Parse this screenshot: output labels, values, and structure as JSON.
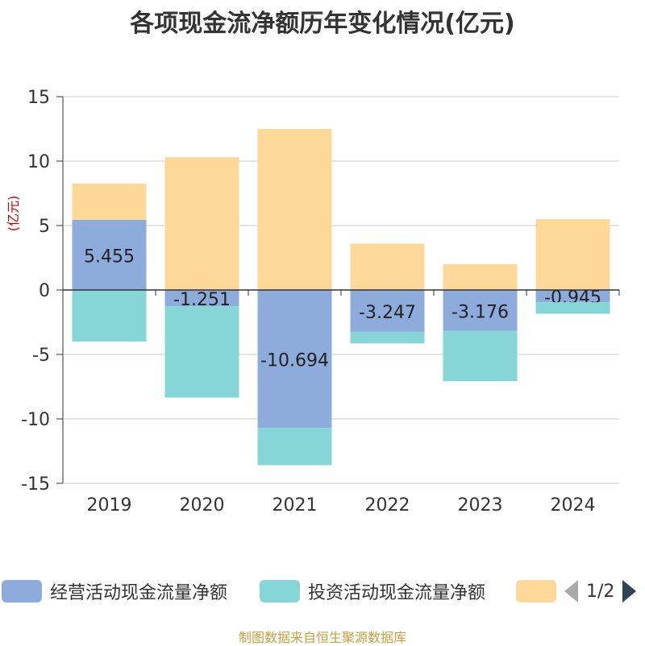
{
  "chart_data": {
    "type": "bar",
    "stacked": true,
    "title": "各项现金流净额历年变化情况(亿元)",
    "ylabel": "(亿元)",
    "xlabel": "",
    "ylim": [
      -15,
      15
    ],
    "yticks": [
      15,
      10,
      5,
      0,
      -5,
      -10,
      -15
    ],
    "categories": [
      "2019",
      "2020",
      "2021",
      "2022",
      "2023",
      "2024"
    ],
    "series": [
      {
        "name": "经营活动现金流量净额",
        "color": "#8eacdb",
        "values": [
          5.455,
          -1.251,
          -10.694,
          -3.247,
          -3.176,
          -0.945
        ],
        "labels": [
          "5.455",
          "-1.251",
          "-10.694",
          "-3.247",
          "-3.176",
          "-0.945"
        ]
      },
      {
        "name": "投资活动现金流量净额",
        "color": "#86d6d8",
        "values": [
          -4.0,
          -7.1,
          -2.9,
          -0.9,
          -3.9,
          -0.9
        ]
      },
      {
        "name": "",
        "color": "#fed899",
        "values": [
          2.8,
          10.3,
          12.5,
          3.6,
          2.0,
          5.5
        ]
      }
    ],
    "legend_position": "bottom",
    "legend_page": "1/2"
  },
  "source": "制图数据来自恒生聚源数据库"
}
